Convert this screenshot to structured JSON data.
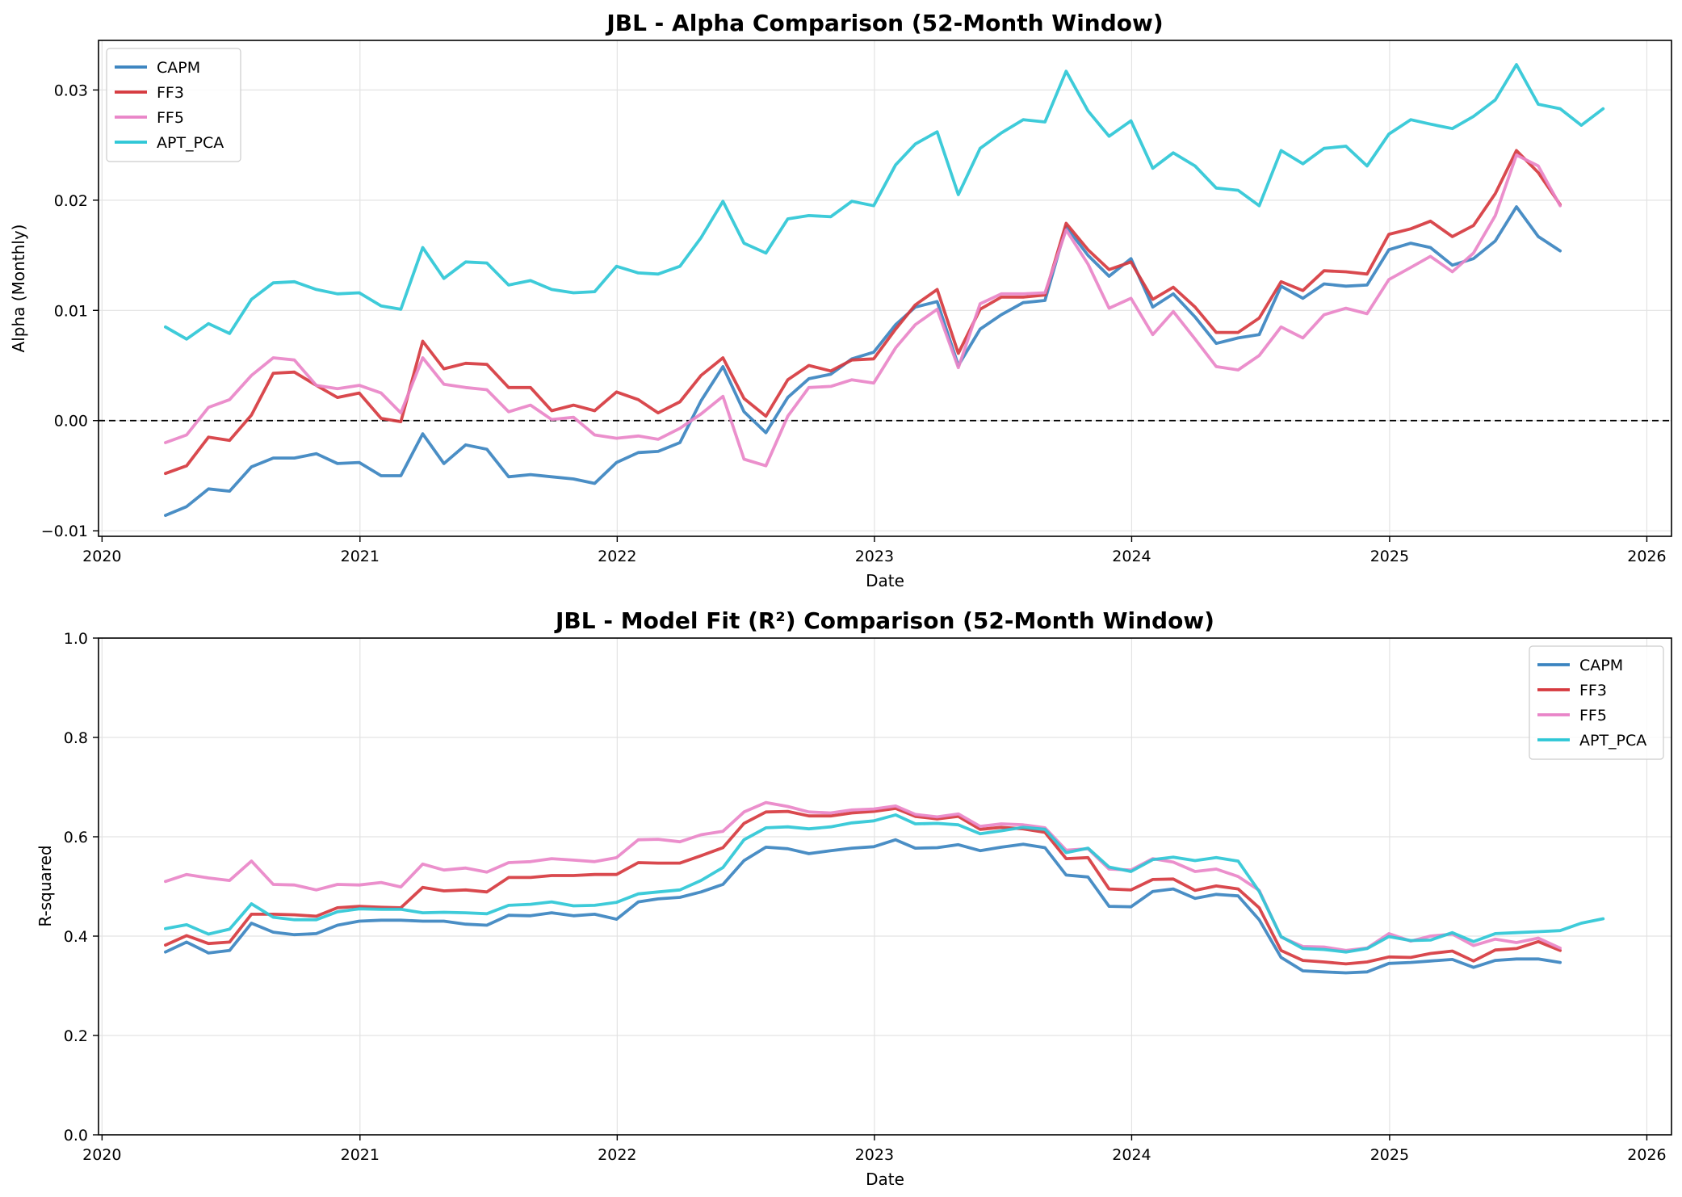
{
  "colors": {
    "CAPM": "#3b84c0",
    "FF3": "#d63a3f",
    "FF5": "#e985c8",
    "APT_PCA": "#2ec7d6"
  },
  "chart_data": [
    {
      "type": "line",
      "title": "JBL - Alpha Comparison (52-Month Window)",
      "xlabel": "Date",
      "ylabel": "Alpha (Monthly)",
      "xlim": [
        "2019-12-27",
        "2026-02-05"
      ],
      "ylim": [
        -0.0105,
        0.0345
      ],
      "x_ticks": [
        {
          "label": "2020",
          "date": "2020-01-01"
        },
        {
          "label": "2021",
          "date": "2021-01-01"
        },
        {
          "label": "2022",
          "date": "2022-01-01"
        },
        {
          "label": "2023",
          "date": "2023-01-01"
        },
        {
          "label": "2024",
          "date": "2024-01-01"
        },
        {
          "label": "2025",
          "date": "2025-01-01"
        },
        {
          "label": "2026",
          "date": "2026-01-01"
        }
      ],
      "y_ticks": [
        {
          "label": "−0.01",
          "value": -0.01
        },
        {
          "label": "0.00",
          "value": 0.0
        },
        {
          "label": "0.01",
          "value": 0.01
        },
        {
          "label": "0.02",
          "value": 0.02
        },
        {
          "label": "0.03",
          "value": 0.03
        }
      ],
      "reference_line": {
        "value": 0.0,
        "style": "dashed"
      },
      "grid": true,
      "legend_position": "upper-left",
      "start_date": "2020-03-31",
      "series": [
        {
          "name": "CAPM",
          "values": [
            -0.0086,
            -0.0078,
            -0.0062,
            -0.0064,
            -0.0042,
            -0.0034,
            -0.0034,
            -0.003,
            -0.0039,
            -0.0038,
            -0.005,
            -0.005,
            -0.0012,
            -0.0039,
            -0.0022,
            -0.0026,
            -0.0051,
            -0.0049,
            -0.0051,
            -0.0053,
            -0.0057,
            -0.0038,
            -0.0029,
            -0.0028,
            -0.002,
            0.0018,
            0.0049,
            0.0008,
            -0.0011,
            0.0021,
            0.0038,
            0.0042,
            0.0056,
            0.0062,
            0.0087,
            0.0103,
            0.0108,
            0.005,
            0.0083,
            0.0096,
            0.0107,
            0.0109,
            0.0176,
            0.015,
            0.0131,
            0.0147,
            0.0103,
            0.0115,
            0.0094,
            0.007,
            0.0075,
            0.0078,
            0.0122,
            0.0111,
            0.0124,
            0.0122,
            0.0123,
            0.0155,
            0.0161,
            0.0157,
            0.0141,
            0.0147,
            0.0163,
            0.0194,
            0.0167,
            0.0154
          ]
        },
        {
          "name": "FF3",
          "values": [
            -0.0048,
            -0.0041,
            -0.0015,
            -0.0018,
            0.0005,
            0.0043,
            0.0044,
            0.0032,
            0.0021,
            0.0025,
            0.0002,
            -0.0001,
            0.0072,
            0.0047,
            0.0052,
            0.0051,
            0.003,
            0.003,
            0.0009,
            0.0014,
            0.0009,
            0.0026,
            0.0019,
            0.0007,
            0.0017,
            0.0041,
            0.0057,
            0.002,
            0.0004,
            0.0037,
            0.005,
            0.0045,
            0.0055,
            0.0056,
            0.0083,
            0.0105,
            0.0119,
            0.0061,
            0.0101,
            0.0112,
            0.0112,
            0.0114,
            0.0179,
            0.0155,
            0.0137,
            0.0144,
            0.011,
            0.0121,
            0.0103,
            0.008,
            0.008,
            0.0093,
            0.0126,
            0.0118,
            0.0136,
            0.0135,
            0.0133,
            0.0169,
            0.0174,
            0.0181,
            0.0167,
            0.0177,
            0.0206,
            0.0245,
            0.0225,
            0.0196
          ]
        },
        {
          "name": "FF5",
          "values": [
            -0.002,
            -0.0013,
            0.0012,
            0.0019,
            0.0041,
            0.0057,
            0.0055,
            0.0032,
            0.0029,
            0.0032,
            0.0025,
            0.0007,
            0.0057,
            0.0033,
            0.003,
            0.0028,
            0.0008,
            0.0014,
            0.0001,
            0.0003,
            -0.0013,
            -0.0016,
            -0.0014,
            -0.0017,
            -0.0007,
            0.0006,
            0.0022,
            -0.0035,
            -0.0041,
            0.0004,
            0.003,
            0.0031,
            0.0037,
            0.0034,
            0.0066,
            0.0087,
            0.0101,
            0.0048,
            0.0106,
            0.0115,
            0.0115,
            0.0116,
            0.0173,
            0.0142,
            0.0102,
            0.0111,
            0.0078,
            0.0099,
            0.0074,
            0.0049,
            0.0046,
            0.0059,
            0.0085,
            0.0075,
            0.0096,
            0.0102,
            0.0097,
            0.0128,
            0.0139,
            0.0149,
            0.0135,
            0.0152,
            0.0186,
            0.0241,
            0.0231,
            0.0195
          ]
        },
        {
          "name": "APT_PCA",
          "values": [
            0.0085,
            0.0074,
            0.0088,
            0.0079,
            0.011,
            0.0125,
            0.0126,
            0.0119,
            0.0115,
            0.0116,
            0.0104,
            0.0101,
            0.0157,
            0.0129,
            0.0144,
            0.0143,
            0.0123,
            0.0127,
            0.0119,
            0.0116,
            0.0117,
            0.014,
            0.0134,
            0.0133,
            0.014,
            0.0166,
            0.0199,
            0.0161,
            0.0152,
            0.0183,
            0.0186,
            0.0185,
            0.0199,
            0.0195,
            0.0232,
            0.0251,
            0.0262,
            0.0205,
            0.0247,
            0.0261,
            0.0273,
            0.0271,
            0.0317,
            0.0281,
            0.0258,
            0.0272,
            0.0229,
            0.0243,
            0.0231,
            0.0211,
            0.0209,
            0.0195,
            0.0245,
            0.0233,
            0.0247,
            0.0249,
            0.0231,
            0.026,
            0.0273,
            0.0269,
            0.0265,
            0.0276,
            0.0291,
            0.0323,
            0.0287,
            0.0283,
            0.0268,
            0.0283
          ]
        }
      ]
    },
    {
      "type": "line",
      "title": "JBL - Model Fit (R²) Comparison (52-Month Window)",
      "xlabel": "Date",
      "ylabel": "R-squared",
      "xlim": [
        "2019-12-27",
        "2026-02-05"
      ],
      "ylim": [
        0.0,
        1.0
      ],
      "x_ticks": [
        {
          "label": "2020",
          "date": "2020-01-01"
        },
        {
          "label": "2021",
          "date": "2021-01-01"
        },
        {
          "label": "2022",
          "date": "2022-01-01"
        },
        {
          "label": "2023",
          "date": "2023-01-01"
        },
        {
          "label": "2024",
          "date": "2024-01-01"
        },
        {
          "label": "2025",
          "date": "2025-01-01"
        },
        {
          "label": "2026",
          "date": "2026-01-01"
        }
      ],
      "y_ticks": [
        {
          "label": "0.0",
          "value": 0.0
        },
        {
          "label": "0.2",
          "value": 0.2
        },
        {
          "label": "0.4",
          "value": 0.4
        },
        {
          "label": "0.6",
          "value": 0.6
        },
        {
          "label": "0.8",
          "value": 0.8
        },
        {
          "label": "1.0",
          "value": 1.0
        }
      ],
      "grid": true,
      "legend_position": "upper-right",
      "start_date": "2020-03-31",
      "series": [
        {
          "name": "CAPM",
          "values": [
            0.368,
            0.388,
            0.366,
            0.371,
            0.426,
            0.408,
            0.403,
            0.405,
            0.422,
            0.43,
            0.432,
            0.432,
            0.43,
            0.43,
            0.424,
            0.422,
            0.442,
            0.441,
            0.447,
            0.441,
            0.444,
            0.434,
            0.469,
            0.475,
            0.478,
            0.489,
            0.504,
            0.552,
            0.579,
            0.576,
            0.566,
            0.572,
            0.577,
            0.58,
            0.594,
            0.577,
            0.578,
            0.584,
            0.572,
            0.579,
            0.585,
            0.578,
            0.523,
            0.519,
            0.46,
            0.459,
            0.49,
            0.495,
            0.476,
            0.484,
            0.481,
            0.433,
            0.357,
            0.33,
            0.328,
            0.326,
            0.328,
            0.345,
            0.347,
            0.35,
            0.353,
            0.337,
            0.351,
            0.354,
            0.354,
            0.347
          ]
        },
        {
          "name": "FF3",
          "values": [
            0.382,
            0.401,
            0.385,
            0.388,
            0.444,
            0.444,
            0.443,
            0.44,
            0.457,
            0.46,
            0.458,
            0.457,
            0.498,
            0.491,
            0.493,
            0.489,
            0.518,
            0.518,
            0.522,
            0.522,
            0.524,
            0.524,
            0.548,
            0.547,
            0.547,
            0.562,
            0.578,
            0.627,
            0.65,
            0.651,
            0.642,
            0.642,
            0.648,
            0.651,
            0.657,
            0.641,
            0.636,
            0.641,
            0.615,
            0.619,
            0.616,
            0.609,
            0.556,
            0.558,
            0.495,
            0.493,
            0.514,
            0.515,
            0.492,
            0.501,
            0.495,
            0.457,
            0.371,
            0.351,
            0.348,
            0.344,
            0.348,
            0.358,
            0.357,
            0.365,
            0.37,
            0.35,
            0.372,
            0.375,
            0.389,
            0.371
          ]
        },
        {
          "name": "FF5",
          "values": [
            0.51,
            0.524,
            0.517,
            0.512,
            0.551,
            0.504,
            0.503,
            0.493,
            0.504,
            0.503,
            0.508,
            0.499,
            0.545,
            0.533,
            0.537,
            0.529,
            0.548,
            0.55,
            0.556,
            0.553,
            0.55,
            0.558,
            0.594,
            0.595,
            0.59,
            0.604,
            0.611,
            0.65,
            0.669,
            0.661,
            0.65,
            0.648,
            0.654,
            0.656,
            0.662,
            0.645,
            0.64,
            0.646,
            0.621,
            0.626,
            0.624,
            0.618,
            0.573,
            0.576,
            0.535,
            0.533,
            0.556,
            0.549,
            0.53,
            0.535,
            0.52,
            0.492,
            0.398,
            0.379,
            0.378,
            0.371,
            0.376,
            0.405,
            0.39,
            0.4,
            0.404,
            0.381,
            0.394,
            0.387,
            0.396,
            0.376
          ]
        },
        {
          "name": "APT_PCA",
          "values": [
            0.415,
            0.423,
            0.404,
            0.414,
            0.465,
            0.438,
            0.433,
            0.433,
            0.449,
            0.455,
            0.454,
            0.454,
            0.447,
            0.448,
            0.447,
            0.445,
            0.462,
            0.464,
            0.469,
            0.461,
            0.462,
            0.468,
            0.485,
            0.489,
            0.493,
            0.512,
            0.538,
            0.594,
            0.618,
            0.62,
            0.616,
            0.62,
            0.628,
            0.632,
            0.644,
            0.626,
            0.627,
            0.624,
            0.606,
            0.612,
            0.619,
            0.615,
            0.568,
            0.577,
            0.539,
            0.53,
            0.554,
            0.559,
            0.552,
            0.558,
            0.551,
            0.49,
            0.399,
            0.375,
            0.373,
            0.368,
            0.375,
            0.399,
            0.391,
            0.392,
            0.407,
            0.389,
            0.405,
            0.407,
            0.409,
            0.411,
            0.426,
            0.435
          ]
        }
      ]
    }
  ]
}
